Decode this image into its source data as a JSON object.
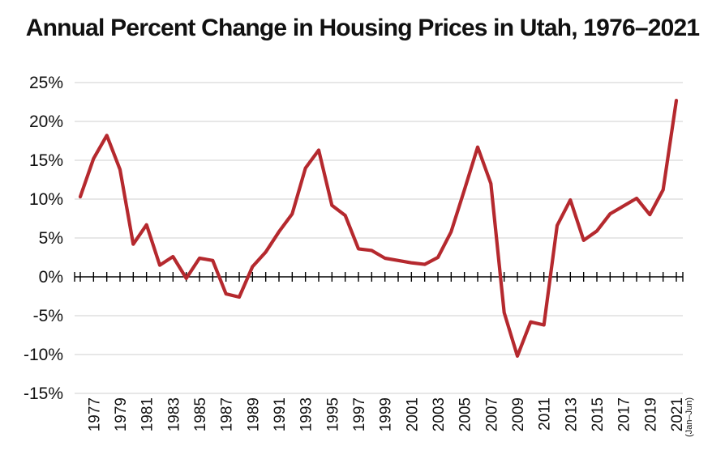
{
  "chart_data": {
    "type": "line",
    "title": "Annual Percent Change in Housing Prices in Utah, 1976–2021",
    "xlabel": "",
    "ylabel": "",
    "ylim": [
      -15,
      25
    ],
    "yticks": [
      -15,
      -10,
      -5,
      0,
      5,
      10,
      15,
      20,
      25
    ],
    "ytick_labels": [
      "-15%",
      "-10%",
      "-5%",
      "0%",
      "5%",
      "10%",
      "15%",
      "20%",
      "25%"
    ],
    "x": [
      1976,
      1977,
      1978,
      1979,
      1980,
      1981,
      1982,
      1983,
      1984,
      1985,
      1986,
      1987,
      1988,
      1989,
      1990,
      1991,
      1992,
      1993,
      1994,
      1995,
      1996,
      1997,
      1998,
      1999,
      2000,
      2001,
      2002,
      2003,
      2004,
      2005,
      2006,
      2007,
      2008,
      2009,
      2010,
      2011,
      2012,
      2013,
      2014,
      2015,
      2016,
      2017,
      2018,
      2019,
      2020,
      2021
    ],
    "xtick_labels": [
      "1977",
      "1979",
      "1981",
      "1983",
      "1985",
      "1987",
      "1989",
      "1991",
      "1993",
      "1995",
      "1997",
      "1999",
      "2001",
      "2003",
      "2005",
      "2007",
      "2009",
      "2011",
      "2013",
      "2015",
      "2017",
      "2019",
      "2021"
    ],
    "xtick_years": [
      1977,
      1979,
      1981,
      1983,
      1985,
      1987,
      1989,
      1991,
      1993,
      1995,
      1997,
      1999,
      2001,
      2003,
      2005,
      2007,
      2009,
      2011,
      2013,
      2015,
      2017,
      2019,
      2021
    ],
    "last_tick_note": "(Jan–Jun)",
    "grid": true,
    "series": [
      {
        "color": "#B5292E",
        "values": [
          10.3,
          15.2,
          18.2,
          13.8,
          4.2,
          6.7,
          1.5,
          2.6,
          -0.2,
          2.4,
          2.1,
          -2.2,
          -2.6,
          1.3,
          3.2,
          5.8,
          8.1,
          14.0,
          16.3,
          9.2,
          7.9,
          3.6,
          3.4,
          2.4,
          2.1,
          1.8,
          1.6,
          2.5,
          5.8,
          11.2,
          16.7,
          12.0,
          -4.6,
          -10.2,
          -5.8,
          -6.2,
          6.6,
          9.9,
          4.7,
          5.9,
          8.1,
          9.1,
          10.1,
          8.0,
          11.2,
          22.7
        ]
      }
    ]
  }
}
